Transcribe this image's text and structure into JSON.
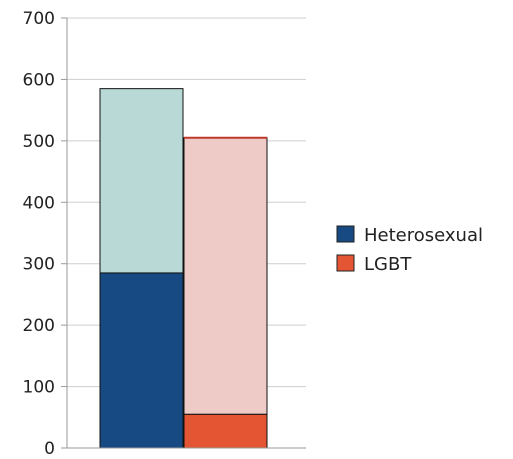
{
  "chart_data": {
    "type": "bar",
    "stacked": true,
    "title": "",
    "xlabel": "",
    "ylabel": "",
    "ylim": [
      0,
      700
    ],
    "yticks": [
      0,
      100,
      200,
      300,
      400,
      500,
      600,
      700
    ],
    "grid": true,
    "legend_position": "right",
    "categories": [
      "",
      ""
    ],
    "series": [
      {
        "name": "Heterosexual",
        "color": "#174a83",
        "light_color": "#b9d9d7",
        "values": [
          285,
          0
        ],
        "overlay_values": [
          300,
          0
        ]
      },
      {
        "name": "LGBT",
        "color": "#e35533",
        "light_color": "#efcbc8",
        "values": [
          0,
          55
        ],
        "overlay_values": [
          0,
          450
        ]
      }
    ]
  }
}
